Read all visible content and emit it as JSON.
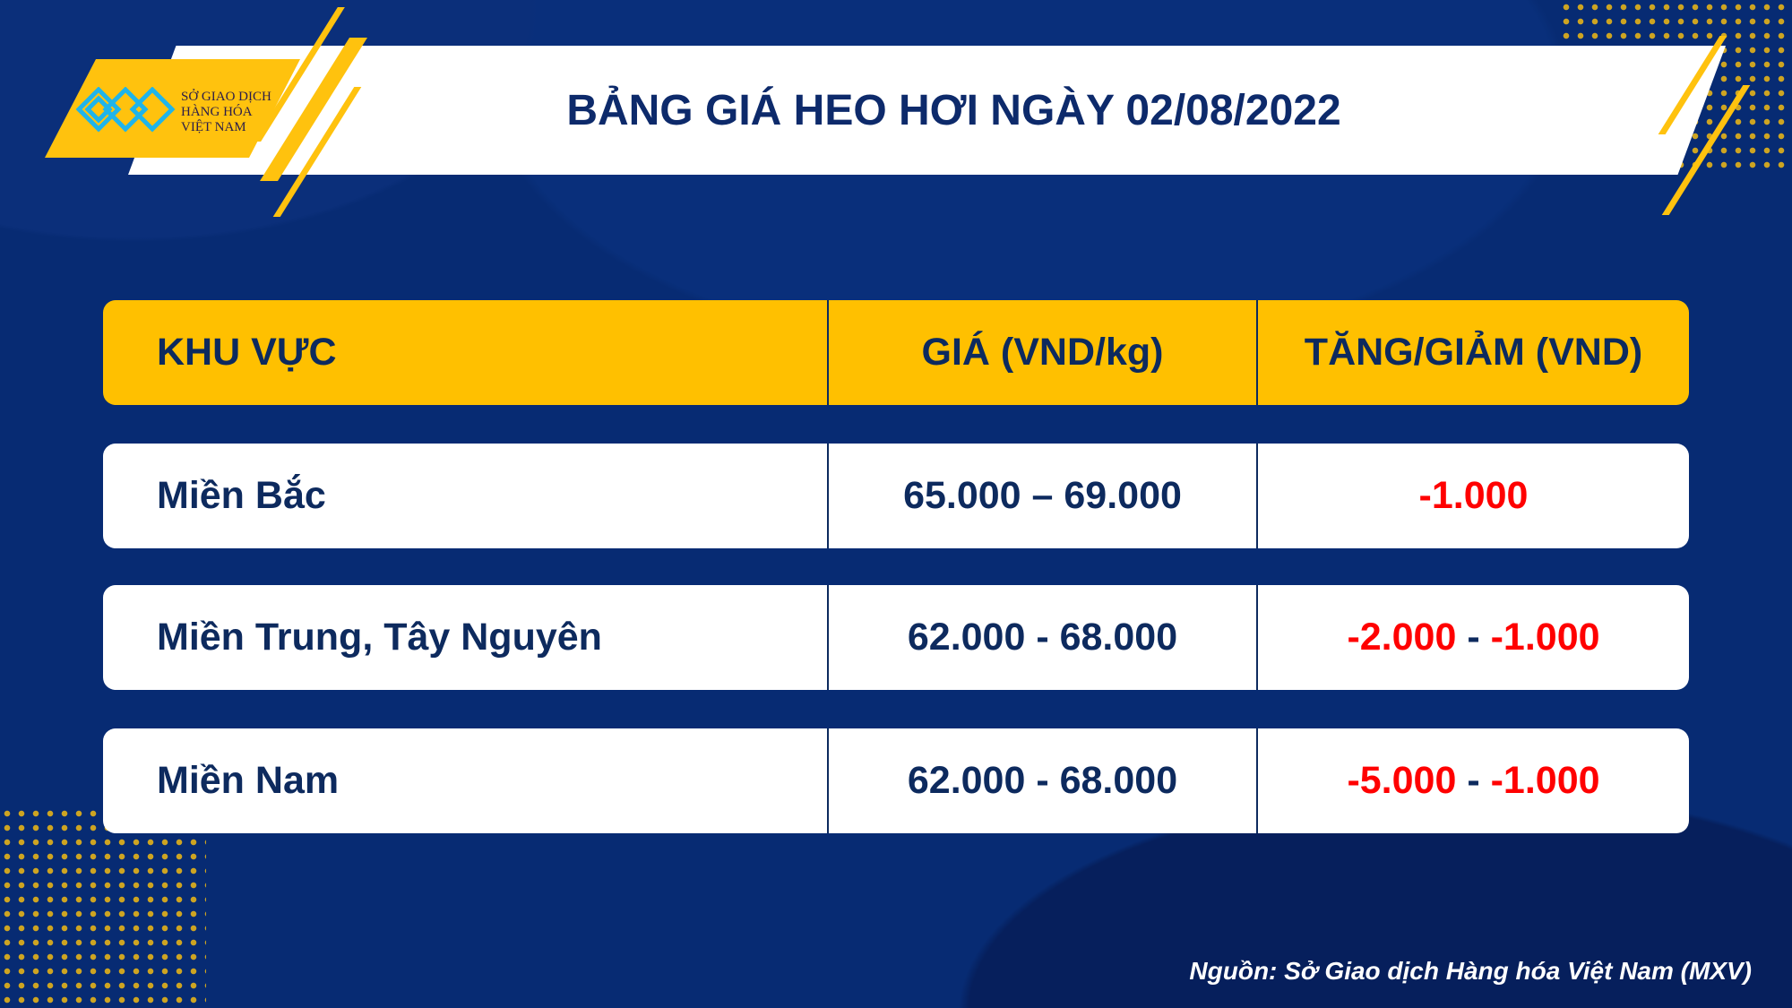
{
  "logo": {
    "line1": "SỞ GIAO DỊCH",
    "line2": "HÀNG HÓA",
    "line3": "VIỆT NAM"
  },
  "title": "BẢNG GIÁ HEO HƠI NGÀY 02/08/2022",
  "table": {
    "headers": [
      "KHU VỰC",
      "GIÁ (VND/kg)",
      "TĂNG/GIẢM (VND)"
    ],
    "rows": [
      {
        "region": "Miền Bắc",
        "price": "65.000 – 69.000",
        "change_a": "-1.000",
        "sep": "",
        "change_b": ""
      },
      {
        "region": "Miền Trung, Tây Nguyên",
        "price": "62.000 - 68.000",
        "change_a": "-2.000",
        "sep": " - ",
        "change_b": "-1.000"
      },
      {
        "region": "Miền Nam",
        "price": "62.000 - 68.000",
        "change_a": "-5.000",
        "sep": " - ",
        "change_b": "-1.000"
      }
    ]
  },
  "footer": "Nguồn: Sở Giao dịch Hàng hóa Việt Nam (MXV)",
  "colors": {
    "background": "#072b73",
    "accent": "#ffc000",
    "negative": "#ff0000",
    "text": "#0d2a5e"
  }
}
